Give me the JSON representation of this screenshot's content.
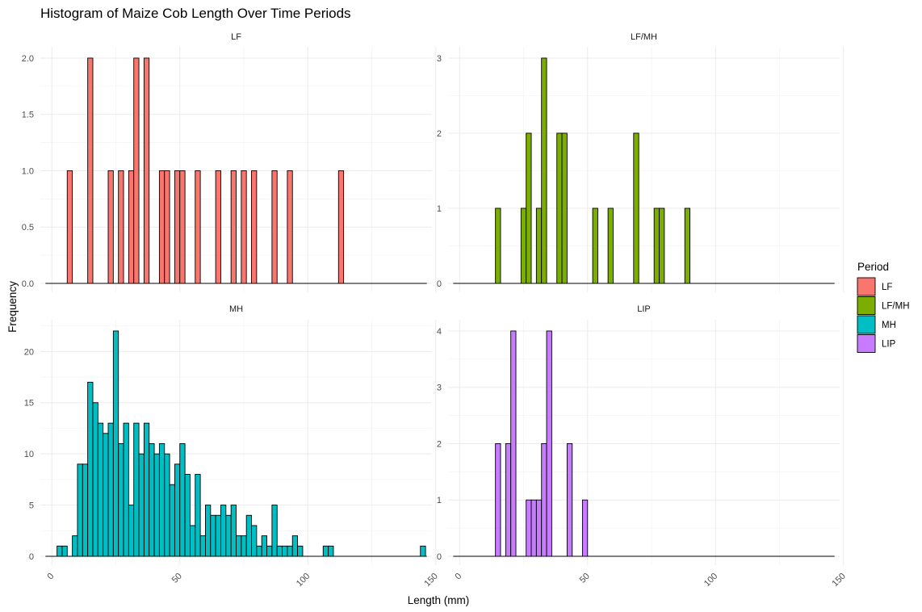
{
  "chart_data": {
    "type": "histogram",
    "title": "Histogram of Maize Cob Length Over Time Periods",
    "xlabel": "Length (mm)",
    "ylabel": "Frequency",
    "xlim": [
      0,
      150
    ],
    "x_ticks": [
      "0",
      "50",
      "100",
      "150"
    ],
    "bin_width": 2,
    "grid": true,
    "legend": {
      "title": "Period",
      "position": "right",
      "entries": [
        {
          "label": "LF",
          "color": "#F8766D"
        },
        {
          "label": "LF/MH",
          "color": "#7CAE00"
        },
        {
          "label": "MH",
          "color": "#00BFC4"
        },
        {
          "label": "LIP",
          "color": "#C77CFF"
        }
      ]
    },
    "panels": [
      {
        "name": "LF",
        "color": "#F8766D",
        "ylim": [
          0,
          2.0
        ],
        "y_ticks": [
          0,
          0.5,
          1.0,
          1.5,
          2.0
        ],
        "y_tick_labels": [
          "0.0",
          "0.5",
          "1.0",
          "1.5",
          "2.0"
        ],
        "bins": [
          [
            6,
            1
          ],
          [
            14,
            2
          ],
          [
            22,
            1
          ],
          [
            26,
            1
          ],
          [
            30,
            1
          ],
          [
            32,
            2
          ],
          [
            36,
            2
          ],
          [
            42,
            1
          ],
          [
            44,
            1
          ],
          [
            48,
            1
          ],
          [
            50,
            1
          ],
          [
            56,
            1
          ],
          [
            64,
            1
          ],
          [
            70,
            1
          ],
          [
            74,
            1
          ],
          [
            78,
            1
          ],
          [
            86,
            1
          ],
          [
            92,
            1
          ],
          [
            112,
            1
          ]
        ]
      },
      {
        "name": "LF/MH",
        "color": "#7CAE00",
        "ylim": [
          0,
          3
        ],
        "y_ticks": [
          0,
          1,
          2,
          3
        ],
        "y_tick_labels": [
          "0",
          "1",
          "2",
          "3"
        ],
        "bins": [
          [
            14,
            1
          ],
          [
            24,
            1
          ],
          [
            26,
            2
          ],
          [
            30,
            1
          ],
          [
            32,
            3
          ],
          [
            38,
            2
          ],
          [
            40,
            2
          ],
          [
            52,
            1
          ],
          [
            58,
            1
          ],
          [
            68,
            2
          ],
          [
            76,
            1
          ],
          [
            78,
            1
          ],
          [
            88,
            1
          ]
        ]
      },
      {
        "name": "MH",
        "color": "#00BFC4",
        "ylim": [
          0,
          22
        ],
        "y_ticks": [
          0,
          5,
          10,
          15,
          20
        ],
        "y_tick_labels": [
          "0",
          "5",
          "10",
          "15",
          "20"
        ],
        "bins": [
          [
            2,
            1
          ],
          [
            4,
            1
          ],
          [
            8,
            2
          ],
          [
            10,
            9
          ],
          [
            12,
            9
          ],
          [
            14,
            17
          ],
          [
            16,
            15
          ],
          [
            18,
            13
          ],
          [
            20,
            12
          ],
          [
            22,
            13
          ],
          [
            24,
            22
          ],
          [
            26,
            11
          ],
          [
            28,
            13
          ],
          [
            30,
            5
          ],
          [
            32,
            13
          ],
          [
            34,
            10
          ],
          [
            36,
            13
          ],
          [
            38,
            11
          ],
          [
            40,
            10
          ],
          [
            42,
            11
          ],
          [
            44,
            10
          ],
          [
            46,
            7
          ],
          [
            48,
            9
          ],
          [
            50,
            11
          ],
          [
            52,
            8
          ],
          [
            54,
            3
          ],
          [
            56,
            8
          ],
          [
            58,
            2
          ],
          [
            60,
            5
          ],
          [
            62,
            4
          ],
          [
            64,
            4
          ],
          [
            66,
            5
          ],
          [
            68,
            4
          ],
          [
            70,
            5
          ],
          [
            72,
            2
          ],
          [
            74,
            2
          ],
          [
            76,
            4
          ],
          [
            78,
            3
          ],
          [
            80,
            1
          ],
          [
            82,
            2
          ],
          [
            84,
            1
          ],
          [
            86,
            5
          ],
          [
            88,
            1
          ],
          [
            90,
            1
          ],
          [
            92,
            1
          ],
          [
            94,
            2
          ],
          [
            96,
            1
          ],
          [
            106,
            1
          ],
          [
            108,
            1
          ],
          [
            144,
            1
          ]
        ]
      },
      {
        "name": "LIP",
        "color": "#C77CFF",
        "ylim": [
          0,
          4
        ],
        "y_ticks": [
          0,
          1,
          2,
          3,
          4
        ],
        "y_tick_labels": [
          "0",
          "1",
          "2",
          "3",
          "4"
        ],
        "bins": [
          [
            14,
            2
          ],
          [
            18,
            2
          ],
          [
            20,
            4
          ],
          [
            26,
            1
          ],
          [
            28,
            1
          ],
          [
            30,
            1
          ],
          [
            32,
            2
          ],
          [
            34,
            4
          ],
          [
            42,
            2
          ],
          [
            48,
            1
          ]
        ]
      }
    ]
  }
}
